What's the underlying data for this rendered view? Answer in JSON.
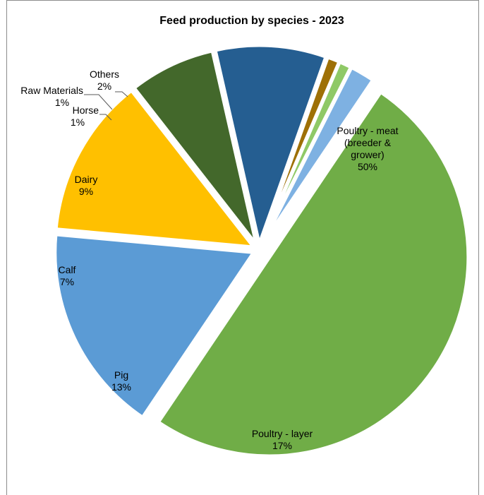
{
  "chart_data": {
    "type": "pie",
    "title": "Feed production by species - 2023",
    "slices": [
      {
        "label_lines": [
          "Poultry - meat",
          "(breeder &",
          "grower)"
        ],
        "pct_text": "50%",
        "value": 50,
        "color": "#70ad47"
      },
      {
        "label_lines": [
          "Poultry - layer"
        ],
        "pct_text": "17%",
        "value": 17,
        "color": "#5b9bd5"
      },
      {
        "label_lines": [
          "Pig"
        ],
        "pct_text": "13%",
        "value": 13,
        "color": "#ffc000"
      },
      {
        "label_lines": [
          "Calf"
        ],
        "pct_text": "7%",
        "value": 7,
        "color": "#43682b"
      },
      {
        "label_lines": [
          "Dairy"
        ],
        "pct_text": "9%",
        "value": 9,
        "color": "#255e91"
      },
      {
        "label_lines": [
          "Horse"
        ],
        "pct_text": "1%",
        "value": 1,
        "color": "#9e7006"
      },
      {
        "label_lines": [
          "Raw Materials"
        ],
        "pct_text": "1%",
        "value": 1,
        "color": "#8fc966"
      },
      {
        "label_lines": [
          "Others"
        ],
        "pct_text": "2%",
        "value": 2,
        "color": "#7eb1e2"
      }
    ],
    "legend": "none"
  }
}
